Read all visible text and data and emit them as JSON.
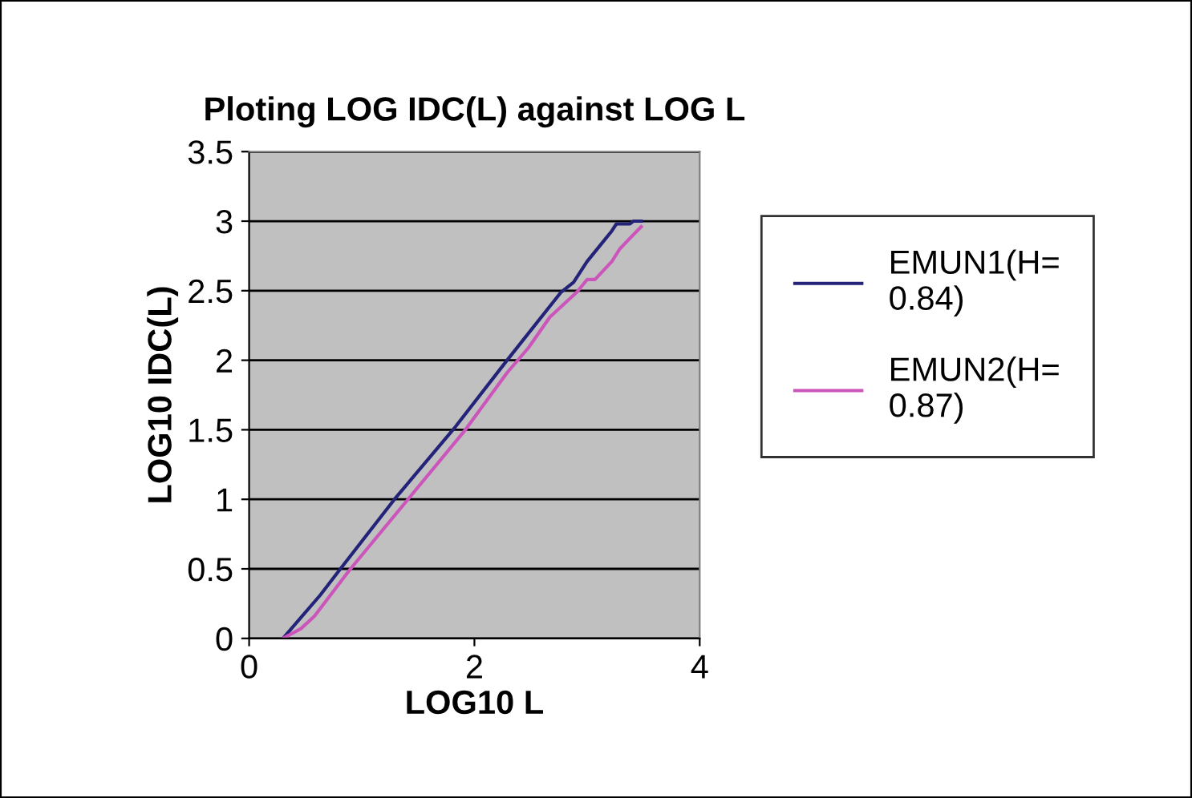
{
  "chart_data": {
    "type": "line",
    "title": "Ploting LOG IDC(L) against LOG L",
    "xlabel": "LOG10 L",
    "ylabel": "LOG10 IDC(L)",
    "xlim": [
      0,
      4
    ],
    "xticks": [
      0,
      2,
      4
    ],
    "ylim": [
      0,
      3.5
    ],
    "yticks": [
      0,
      0.5,
      1,
      1.5,
      2,
      2.5,
      3,
      3.5
    ],
    "grid": "y",
    "legend": "right",
    "marker": "none",
    "line_style": "solid",
    "series": [
      {
        "name": "EMUN1(H= 0.84)",
        "color": "#232379",
        "x": [
          0.3,
          0.63,
          0.82,
          1.29,
          1.82,
          2.29,
          2.77,
          2.88,
          3.0,
          3.15,
          3.22,
          3.26,
          3.38,
          3.41,
          3.48
        ],
        "values": [
          0,
          0.31,
          0.51,
          1.0,
          1.51,
          2.0,
          2.49,
          2.56,
          2.71,
          2.86,
          2.93,
          2.98,
          2.98,
          3.0,
          3.0
        ]
      },
      {
        "name": "EMUN2(H= 0.87)",
        "color": "#cc55bb",
        "x": [
          0.3,
          0.46,
          0.58,
          0.89,
          1.41,
          1.91,
          2.29,
          2.48,
          2.67,
          2.91,
          3.0,
          3.07,
          3.22,
          3.29,
          3.36,
          3.48
        ],
        "values": [
          0,
          0.07,
          0.16,
          0.49,
          1.0,
          1.49,
          1.91,
          2.09,
          2.31,
          2.49,
          2.58,
          2.58,
          2.71,
          2.8,
          2.86,
          2.96
        ]
      }
    ]
  }
}
